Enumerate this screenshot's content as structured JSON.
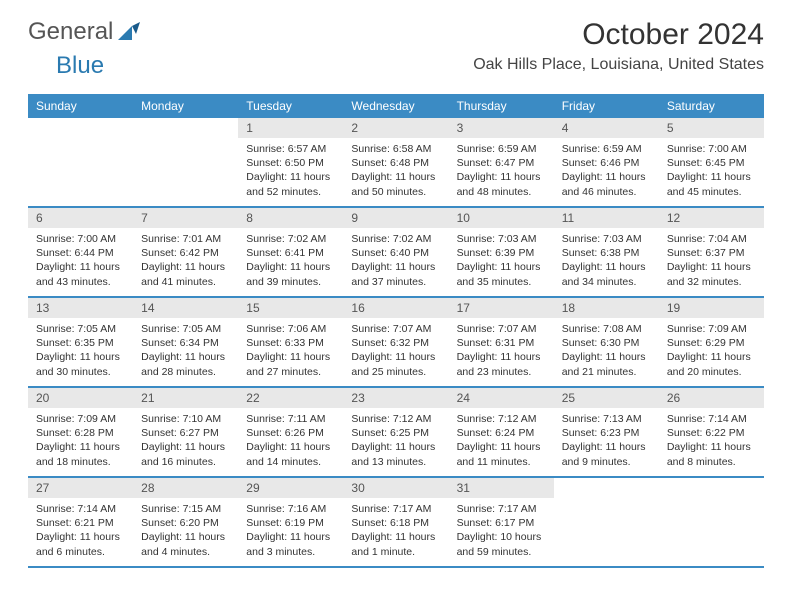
{
  "logo": {
    "word1": "General",
    "word2": "Blue"
  },
  "title": "October 2024",
  "location": "Oak Hills Place, Louisiana, United States",
  "colors": {
    "header_bg": "#3b8bc4",
    "header_text": "#ffffff",
    "daynum_bg": "#e8e8e8",
    "border": "#3b8bc4",
    "logo_gray": "#555555",
    "logo_blue": "#2a7ab0"
  },
  "day_names": [
    "Sunday",
    "Monday",
    "Tuesday",
    "Wednesday",
    "Thursday",
    "Friday",
    "Saturday"
  ],
  "weeks": [
    [
      null,
      null,
      {
        "n": "1",
        "sr": "6:57 AM",
        "ss": "6:50 PM",
        "dl": "11 hours and 52 minutes."
      },
      {
        "n": "2",
        "sr": "6:58 AM",
        "ss": "6:48 PM",
        "dl": "11 hours and 50 minutes."
      },
      {
        "n": "3",
        "sr": "6:59 AM",
        "ss": "6:47 PM",
        "dl": "11 hours and 48 minutes."
      },
      {
        "n": "4",
        "sr": "6:59 AM",
        "ss": "6:46 PM",
        "dl": "11 hours and 46 minutes."
      },
      {
        "n": "5",
        "sr": "7:00 AM",
        "ss": "6:45 PM",
        "dl": "11 hours and 45 minutes."
      }
    ],
    [
      {
        "n": "6",
        "sr": "7:00 AM",
        "ss": "6:44 PM",
        "dl": "11 hours and 43 minutes."
      },
      {
        "n": "7",
        "sr": "7:01 AM",
        "ss": "6:42 PM",
        "dl": "11 hours and 41 minutes."
      },
      {
        "n": "8",
        "sr": "7:02 AM",
        "ss": "6:41 PM",
        "dl": "11 hours and 39 minutes."
      },
      {
        "n": "9",
        "sr": "7:02 AM",
        "ss": "6:40 PM",
        "dl": "11 hours and 37 minutes."
      },
      {
        "n": "10",
        "sr": "7:03 AM",
        "ss": "6:39 PM",
        "dl": "11 hours and 35 minutes."
      },
      {
        "n": "11",
        "sr": "7:03 AM",
        "ss": "6:38 PM",
        "dl": "11 hours and 34 minutes."
      },
      {
        "n": "12",
        "sr": "7:04 AM",
        "ss": "6:37 PM",
        "dl": "11 hours and 32 minutes."
      }
    ],
    [
      {
        "n": "13",
        "sr": "7:05 AM",
        "ss": "6:35 PM",
        "dl": "11 hours and 30 minutes."
      },
      {
        "n": "14",
        "sr": "7:05 AM",
        "ss": "6:34 PM",
        "dl": "11 hours and 28 minutes."
      },
      {
        "n": "15",
        "sr": "7:06 AM",
        "ss": "6:33 PM",
        "dl": "11 hours and 27 minutes."
      },
      {
        "n": "16",
        "sr": "7:07 AM",
        "ss": "6:32 PM",
        "dl": "11 hours and 25 minutes."
      },
      {
        "n": "17",
        "sr": "7:07 AM",
        "ss": "6:31 PM",
        "dl": "11 hours and 23 minutes."
      },
      {
        "n": "18",
        "sr": "7:08 AM",
        "ss": "6:30 PM",
        "dl": "11 hours and 21 minutes."
      },
      {
        "n": "19",
        "sr": "7:09 AM",
        "ss": "6:29 PM",
        "dl": "11 hours and 20 minutes."
      }
    ],
    [
      {
        "n": "20",
        "sr": "7:09 AM",
        "ss": "6:28 PM",
        "dl": "11 hours and 18 minutes."
      },
      {
        "n": "21",
        "sr": "7:10 AM",
        "ss": "6:27 PM",
        "dl": "11 hours and 16 minutes."
      },
      {
        "n": "22",
        "sr": "7:11 AM",
        "ss": "6:26 PM",
        "dl": "11 hours and 14 minutes."
      },
      {
        "n": "23",
        "sr": "7:12 AM",
        "ss": "6:25 PM",
        "dl": "11 hours and 13 minutes."
      },
      {
        "n": "24",
        "sr": "7:12 AM",
        "ss": "6:24 PM",
        "dl": "11 hours and 11 minutes."
      },
      {
        "n": "25",
        "sr": "7:13 AM",
        "ss": "6:23 PM",
        "dl": "11 hours and 9 minutes."
      },
      {
        "n": "26",
        "sr": "7:14 AM",
        "ss": "6:22 PM",
        "dl": "11 hours and 8 minutes."
      }
    ],
    [
      {
        "n": "27",
        "sr": "7:14 AM",
        "ss": "6:21 PM",
        "dl": "11 hours and 6 minutes."
      },
      {
        "n": "28",
        "sr": "7:15 AM",
        "ss": "6:20 PM",
        "dl": "11 hours and 4 minutes."
      },
      {
        "n": "29",
        "sr": "7:16 AM",
        "ss": "6:19 PM",
        "dl": "11 hours and 3 minutes."
      },
      {
        "n": "30",
        "sr": "7:17 AM",
        "ss": "6:18 PM",
        "dl": "11 hours and 1 minute."
      },
      {
        "n": "31",
        "sr": "7:17 AM",
        "ss": "6:17 PM",
        "dl": "10 hours and 59 minutes."
      },
      null,
      null
    ]
  ],
  "labels": {
    "sunrise": "Sunrise:",
    "sunset": "Sunset:",
    "daylight": "Daylight:"
  }
}
